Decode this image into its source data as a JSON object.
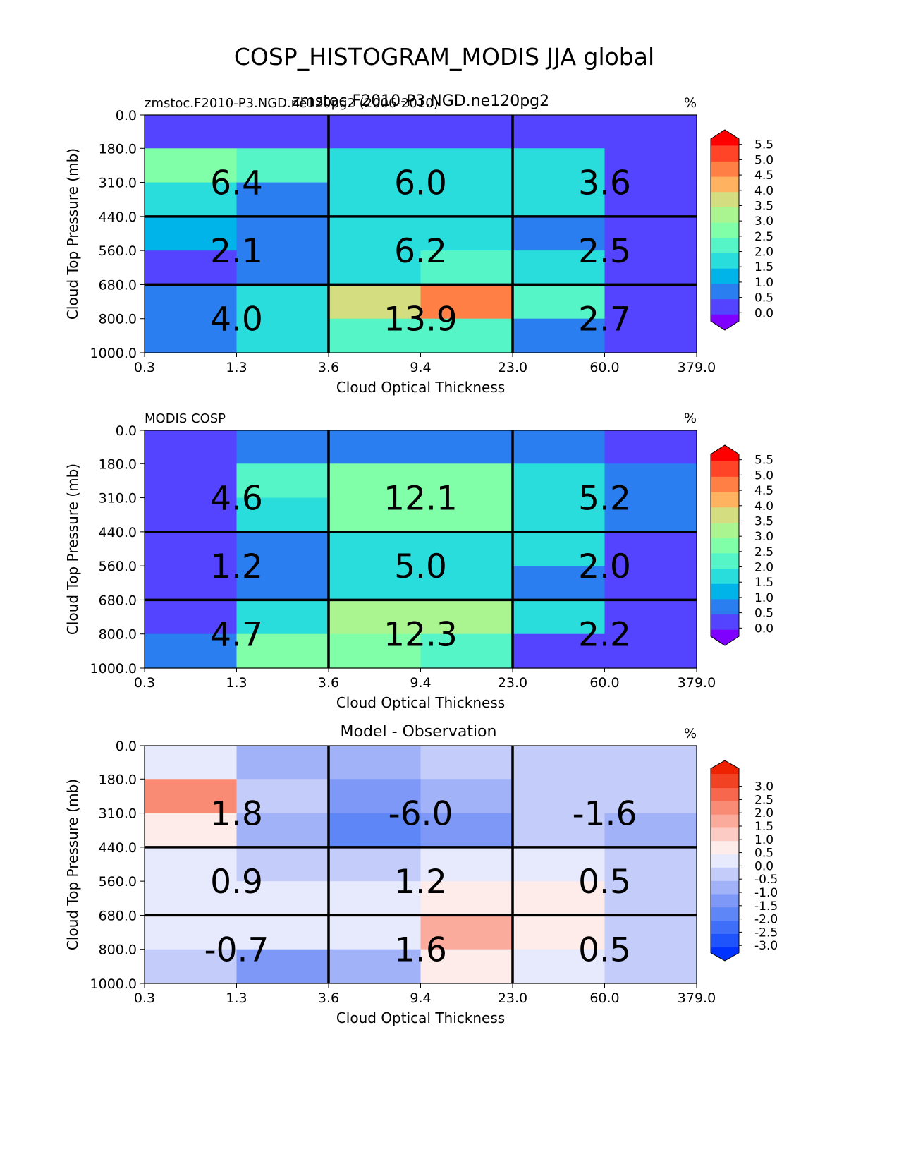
{
  "figure_title": "COSP_HISTOGRAM_MODIS JJA global",
  "chart_data": [
    {
      "type": "heatmap",
      "id": "model",
      "title": "zmstoc.F2010-P3.NGD.ne120pg2",
      "left_label": "zmstoc.F2010-P3.NGD.ne120pg2 (2006-2010)",
      "units_label": "%",
      "xlabel": "Cloud Optical Thickness",
      "ylabel": "Cloud Top Pressure (mb)",
      "x_ticks": [
        "0.3",
        "1.3",
        "3.6",
        "9.4",
        "23.0",
        "60.0",
        "379.0"
      ],
      "y_ticks": [
        "0.0",
        "180.0",
        "310.0",
        "440.0",
        "560.0",
        "680.0",
        "800.0",
        "1000.0"
      ],
      "cell_values": [
        [
          0.0,
          0.0,
          0.0,
          0.0,
          0.0,
          0.0
        ],
        [
          2.7,
          2.2,
          1.6,
          1.6,
          1.5,
          0.3
        ],
        [
          1.5,
          0.9,
          1.6,
          1.9,
          1.5,
          0.3
        ],
        [
          1.0,
          0.9,
          1.5,
          1.9,
          0.9,
          0.3
        ],
        [
          0.4,
          0.9,
          1.6,
          2.4,
          1.5,
          0.3
        ],
        [
          0.9,
          1.8,
          3.8,
          4.8,
          2.3,
          0.3
        ],
        [
          0.9,
          1.5,
          2.4,
          2.4,
          0.9,
          0.3
        ]
      ],
      "box_values": [
        [
          "6.4",
          "6.0",
          "3.6"
        ],
        [
          "2.1",
          "6.2",
          "2.5"
        ],
        [
          "4.0",
          "13.9",
          "2.7"
        ]
      ],
      "colorbar": {
        "ticks": [
          "5.5",
          "5.0",
          "4.5",
          "4.0",
          "3.5",
          "3.0",
          "2.5",
          "2.0",
          "1.5",
          "1.0",
          "0.5",
          "0.0"
        ],
        "min": 0.0,
        "max": 5.5
      }
    },
    {
      "type": "heatmap",
      "id": "obs",
      "title": "",
      "left_label": "MODIS COSP",
      "units_label": "%",
      "xlabel": "Cloud Optical Thickness",
      "ylabel": "Cloud Top Pressure (mb)",
      "x_ticks": [
        "0.3",
        "1.3",
        "3.6",
        "9.4",
        "23.0",
        "60.0",
        "379.0"
      ],
      "y_ticks": [
        "0.0",
        "180.0",
        "310.0",
        "440.0",
        "560.0",
        "680.0",
        "800.0",
        "1000.0"
      ],
      "cell_values": [
        [
          0.4,
          0.9,
          0.9,
          0.9,
          0.9,
          0.3
        ],
        [
          0.4,
          2.2,
          2.6,
          2.6,
          1.5,
          0.9
        ],
        [
          0.4,
          1.5,
          2.6,
          2.6,
          1.5,
          0.9
        ],
        [
          0.4,
          0.9,
          1.5,
          1.5,
          1.5,
          0.4
        ],
        [
          0.4,
          0.9,
          1.5,
          1.5,
          0.9,
          0.4
        ],
        [
          0.4,
          1.5,
          3.3,
          3.3,
          1.5,
          0.4
        ],
        [
          0.9,
          2.7,
          2.9,
          2.1,
          0.4,
          0.4
        ]
      ],
      "box_values": [
        [
          "4.6",
          "12.1",
          "5.2"
        ],
        [
          "1.2",
          "5.0",
          "2.0"
        ],
        [
          "4.7",
          "12.3",
          "2.2"
        ]
      ],
      "colorbar": {
        "ticks": [
          "5.5",
          "5.0",
          "4.5",
          "4.0",
          "3.5",
          "3.0",
          "2.5",
          "2.0",
          "1.5",
          "1.0",
          "0.5",
          "0.0"
        ],
        "min": 0.0,
        "max": 5.5
      }
    },
    {
      "type": "heatmap",
      "id": "diff",
      "title": "Model - Observation",
      "left_label": "",
      "units_label": "%",
      "xlabel": "Cloud Optical Thickness",
      "ylabel": "Cloud Top Pressure (mb)",
      "x_ticks": [
        "0.3",
        "1.3",
        "3.6",
        "9.4",
        "23.0",
        "60.0",
        "379.0"
      ],
      "y_ticks": [
        "0.0",
        "180.0",
        "310.0",
        "440.0",
        "560.0",
        "680.0",
        "800.0",
        "1000.0"
      ],
      "cell_values": [
        [
          0.1,
          -0.6,
          -0.6,
          -0.3,
          -0.3,
          -0.3
        ],
        [
          2.1,
          -0.3,
          -1.3,
          -0.6,
          -0.3,
          -0.3
        ],
        [
          0.8,
          -0.6,
          -1.8,
          -1.3,
          -0.3,
          -0.6
        ],
        [
          0.1,
          -0.3,
          -0.3,
          0.1,
          0.1,
          -0.3
        ],
        [
          0.1,
          0.1,
          0.1,
          0.8,
          0.8,
          -0.3
        ],
        [
          0.1,
          0.1,
          0.1,
          1.8,
          0.8,
          -0.3
        ],
        [
          -0.3,
          -1.3,
          -0.6,
          0.8,
          0.1,
          -0.3
        ]
      ],
      "box_values": [
        [
          "1.8",
          "-6.0",
          "-1.6"
        ],
        [
          "0.9",
          "1.2",
          "0.5"
        ],
        [
          "-0.7",
          "1.6",
          "0.5"
        ]
      ],
      "colorbar": {
        "ticks": [
          "3.0",
          "2.5",
          "2.0",
          "1.5",
          "1.0",
          "0.5",
          "0.0",
          "-0.5",
          "-1.0",
          "-1.5",
          "-2.0",
          "-2.5",
          "-3.0"
        ],
        "min": -3.0,
        "max": 3.0
      }
    }
  ]
}
